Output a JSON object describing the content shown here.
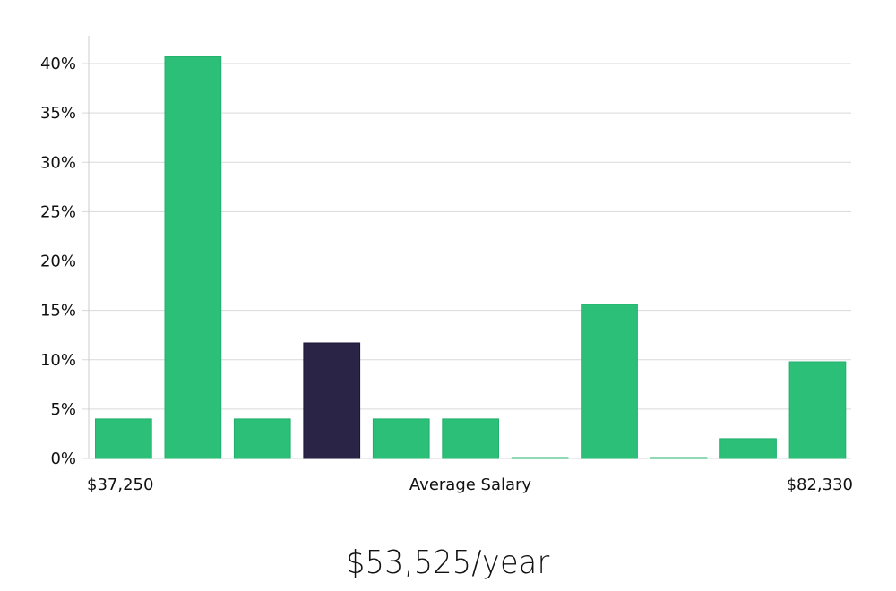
{
  "headline": "$53,525/year",
  "colors": {
    "bar": "#2bbf78",
    "bar_stroke": "#22b06c",
    "highlight": "#2a2546",
    "grid": "#d9d9d9",
    "axis": "#cccccc"
  },
  "chart_data": {
    "type": "bar",
    "title": "",
    "xlabel": "Average Salary",
    "ylabel": "",
    "x_min_label": "$37,250",
    "x_max_label": "$82,330",
    "ylim": [
      0,
      0.43
    ],
    "yticks": [
      0,
      0.05,
      0.1,
      0.15,
      0.2,
      0.25,
      0.3,
      0.35,
      0.4
    ],
    "ytick_labels": [
      "0%",
      "5%",
      "10%",
      "15%",
      "20%",
      "25%",
      "30%",
      "35%",
      "40%"
    ],
    "grid": true,
    "values": [
      0.04,
      0.407,
      0.04,
      0.117,
      0.04,
      0.04,
      0.0,
      0.156,
      0.0,
      0.02,
      0.098
    ],
    "highlight_index": 3
  }
}
